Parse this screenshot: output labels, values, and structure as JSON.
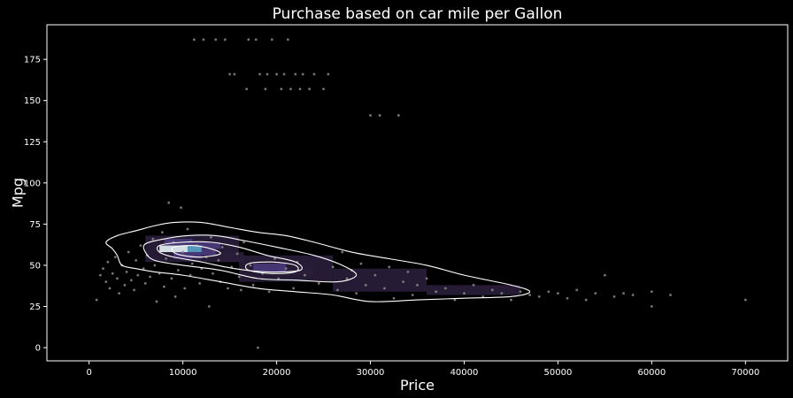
{
  "chart_data": {
    "type": "scatter",
    "title": "Purchase based on car mile per Gallon",
    "xlabel": "Price",
    "ylabel": "Mpg",
    "xlim": [
      -4500,
      74500
    ],
    "ylim": [
      -8,
      196
    ],
    "xticks": [
      0,
      10000,
      20000,
      30000,
      40000,
      50000,
      60000,
      70000
    ],
    "yticks": [
      0,
      25,
      50,
      75,
      100,
      125,
      150,
      175
    ],
    "grid": false,
    "legend": "none",
    "colors": {
      "background": "#000000",
      "points": "#8a8a8a",
      "contour": "#ffffff",
      "hist_low": "#2a1e3a",
      "hist_mid": "#4a3a7a",
      "hist_high": "#5aa3c8",
      "hist_peak": "#e8f4f8"
    },
    "histogram_bins": [
      {
        "x0": 7500,
        "x1": 9000,
        "y0": 58,
        "y1": 62,
        "density": 1.0
      },
      {
        "x0": 9000,
        "x1": 10500,
        "y0": 58,
        "y1": 62,
        "density": 0.95
      },
      {
        "x0": 10500,
        "x1": 12000,
        "y0": 58,
        "y1": 62,
        "density": 0.8
      },
      {
        "x0": 12000,
        "x1": 13500,
        "y0": 56,
        "y1": 60,
        "density": 0.55
      },
      {
        "x0": 8000,
        "x1": 11000,
        "y0": 62,
        "y1": 66,
        "density": 0.45
      },
      {
        "x0": 11000,
        "x1": 14000,
        "y0": 60,
        "y1": 64,
        "density": 0.4
      },
      {
        "x0": 9000,
        "x1": 12000,
        "y0": 54,
        "y1": 58,
        "density": 0.4
      },
      {
        "x0": 13500,
        "x1": 16500,
        "y0": 52,
        "y1": 58,
        "density": 0.3
      },
      {
        "x0": 17500,
        "x1": 21000,
        "y0": 46,
        "y1": 51,
        "density": 0.5
      },
      {
        "x0": 21000,
        "x1": 24000,
        "y0": 44,
        "y1": 48,
        "density": 0.3
      },
      {
        "x0": 6000,
        "x1": 16000,
        "y0": 52,
        "y1": 68,
        "density": 0.18
      },
      {
        "x0": 16000,
        "x1": 26000,
        "y0": 40,
        "y1": 56,
        "density": 0.16
      },
      {
        "x0": 26000,
        "x1": 36000,
        "y0": 34,
        "y1": 48,
        "density": 0.12
      },
      {
        "x0": 36000,
        "x1": 46000,
        "y0": 32,
        "y1": 38,
        "density": 0.1
      }
    ],
    "contours": [
      {
        "level": 1,
        "points": [
          [
            1800,
            64
          ],
          [
            3000,
            68
          ],
          [
            5000,
            71
          ],
          [
            7000,
            74
          ],
          [
            9000,
            76
          ],
          [
            12000,
            76
          ],
          [
            15000,
            73
          ],
          [
            18000,
            70
          ],
          [
            21000,
            68
          ],
          [
            24000,
            64
          ],
          [
            28000,
            58
          ],
          [
            32000,
            54
          ],
          [
            36000,
            50
          ],
          [
            40000,
            44
          ],
          [
            45000,
            38
          ],
          [
            47000,
            34
          ],
          [
            45000,
            31
          ],
          [
            40000,
            30
          ],
          [
            35000,
            29
          ],
          [
            30000,
            28
          ],
          [
            26000,
            32
          ],
          [
            22000,
            34
          ],
          [
            18000,
            36
          ],
          [
            14000,
            40
          ],
          [
            10000,
            44
          ],
          [
            7000,
            46
          ],
          [
            5000,
            48
          ],
          [
            3500,
            50
          ],
          [
            3000,
            56
          ],
          [
            2500,
            60
          ]
        ]
      },
      {
        "level": 2,
        "points": [
          [
            6000,
            63
          ],
          [
            8000,
            66
          ],
          [
            10500,
            68
          ],
          [
            13500,
            68
          ],
          [
            16500,
            65
          ],
          [
            20000,
            61
          ],
          [
            24000,
            56
          ],
          [
            27000,
            50
          ],
          [
            28500,
            44
          ],
          [
            26500,
            40
          ],
          [
            22000,
            41
          ],
          [
            18000,
            42
          ],
          [
            14000,
            47
          ],
          [
            10000,
            50
          ],
          [
            7000,
            53
          ],
          [
            6000,
            58
          ]
        ]
      },
      {
        "level": 3,
        "points": [
          [
            7500,
            62
          ],
          [
            10000,
            64
          ],
          [
            13000,
            64
          ],
          [
            16000,
            61
          ],
          [
            19000,
            56
          ],
          [
            22000,
            52
          ],
          [
            22500,
            47
          ],
          [
            19000,
            46
          ],
          [
            15500,
            48
          ],
          [
            12000,
            52
          ],
          [
            9000,
            55
          ],
          [
            7500,
            58
          ]
        ]
      },
      {
        "level": 4,
        "points": [
          [
            9000,
            61
          ],
          [
            11000,
            62
          ],
          [
            13000,
            60
          ],
          [
            14000,
            57
          ],
          [
            12000,
            55
          ],
          [
            10000,
            56
          ],
          [
            9000,
            58
          ]
        ]
      },
      {
        "level": 5,
        "points": [
          [
            17000,
            51
          ],
          [
            19500,
            52
          ],
          [
            22000,
            50
          ],
          [
            22000,
            46
          ],
          [
            19500,
            45
          ],
          [
            17000,
            47
          ]
        ]
      }
    ],
    "points": [
      [
        800,
        29
      ],
      [
        1200,
        44
      ],
      [
        1500,
        48
      ],
      [
        1800,
        40
      ],
      [
        2000,
        52
      ],
      [
        2200,
        36
      ],
      [
        2500,
        45
      ],
      [
        2800,
        55
      ],
      [
        3000,
        42
      ],
      [
        3200,
        33
      ],
      [
        3500,
        50
      ],
      [
        3800,
        38
      ],
      [
        4000,
        46
      ],
      [
        4200,
        58
      ],
      [
        4500,
        41
      ],
      [
        4800,
        35
      ],
      [
        5000,
        53
      ],
      [
        5200,
        44
      ],
      [
        5500,
        62
      ],
      [
        5800,
        48
      ],
      [
        6000,
        39
      ],
      [
        6200,
        56
      ],
      [
        6500,
        43
      ],
      [
        6800,
        66
      ],
      [
        7000,
        50
      ],
      [
        7200,
        28
      ],
      [
        7500,
        45
      ],
      [
        7800,
        70
      ],
      [
        8000,
        37
      ],
      [
        8200,
        54
      ],
      [
        8500,
        88
      ],
      [
        8800,
        42
      ],
      [
        9000,
        64
      ],
      [
        9200,
        31
      ],
      [
        9500,
        47
      ],
      [
        9800,
        85
      ],
      [
        10000,
        58
      ],
      [
        10200,
        36
      ],
      [
        10500,
        72
      ],
      [
        10800,
        44
      ],
      [
        11000,
        51
      ],
      [
        11200,
        187
      ],
      [
        11500,
        62
      ],
      [
        11800,
        39
      ],
      [
        12000,
        48
      ],
      [
        12200,
        187
      ],
      [
        12500,
        55
      ],
      [
        12800,
        25
      ],
      [
        13000,
        67
      ],
      [
        13200,
        45
      ],
      [
        13500,
        187
      ],
      [
        13800,
        53
      ],
      [
        14000,
        40
      ],
      [
        14200,
        61
      ],
      [
        14500,
        187
      ],
      [
        14800,
        36
      ],
      [
        15000,
        166
      ],
      [
        15200,
        49
      ],
      [
        15500,
        166
      ],
      [
        15800,
        57
      ],
      [
        16000,
        43
      ],
      [
        16200,
        35
      ],
      [
        16500,
        64
      ],
      [
        16800,
        157
      ],
      [
        17000,
        187
      ],
      [
        17200,
        50
      ],
      [
        17500,
        38
      ],
      [
        17800,
        187
      ],
      [
        18000,
        0
      ],
      [
        18200,
        166
      ],
      [
        18500,
        45
      ],
      [
        18800,
        157
      ],
      [
        19000,
        166
      ],
      [
        19200,
        34
      ],
      [
        19500,
        187
      ],
      [
        19800,
        54
      ],
      [
        20000,
        166
      ],
      [
        20200,
        42
      ],
      [
        20500,
        157
      ],
      [
        20800,
        166
      ],
      [
        21000,
        48
      ],
      [
        21200,
        187
      ],
      [
        21500,
        157
      ],
      [
        21800,
        36
      ],
      [
        22000,
        166
      ],
      [
        22200,
        52
      ],
      [
        22500,
        157
      ],
      [
        22800,
        166
      ],
      [
        23000,
        44
      ],
      [
        23500,
        157
      ],
      [
        24000,
        166
      ],
      [
        24500,
        39
      ],
      [
        25000,
        157
      ],
      [
        25500,
        166
      ],
      [
        26000,
        49
      ],
      [
        26500,
        35
      ],
      [
        27000,
        58
      ],
      [
        27500,
        42
      ],
      [
        28000,
        47
      ],
      [
        28500,
        33
      ],
      [
        29000,
        51
      ],
      [
        29500,
        38
      ],
      [
        30000,
        141
      ],
      [
        30500,
        44
      ],
      [
        31000,
        141
      ],
      [
        31500,
        36
      ],
      [
        32000,
        49
      ],
      [
        32500,
        30
      ],
      [
        33000,
        141
      ],
      [
        33500,
        40
      ],
      [
        34000,
        46
      ],
      [
        34500,
        32
      ],
      [
        35000,
        38
      ],
      [
        36000,
        42
      ],
      [
        37000,
        34
      ],
      [
        38000,
        36
      ],
      [
        39000,
        29
      ],
      [
        40000,
        33
      ],
      [
        41000,
        38
      ],
      [
        42000,
        31
      ],
      [
        43000,
        35
      ],
      [
        44000,
        33
      ],
      [
        45000,
        29
      ],
      [
        46000,
        34
      ],
      [
        47000,
        32
      ],
      [
        48000,
        31
      ],
      [
        49000,
        34
      ],
      [
        50000,
        33
      ],
      [
        51000,
        30
      ],
      [
        52000,
        35
      ],
      [
        53000,
        29
      ],
      [
        54000,
        33
      ],
      [
        55000,
        44
      ],
      [
        56000,
        31
      ],
      [
        57000,
        33
      ],
      [
        58000,
        32
      ],
      [
        60000,
        25
      ],
      [
        60000,
        34
      ],
      [
        62000,
        32
      ],
      [
        70000,
        29
      ]
    ]
  }
}
